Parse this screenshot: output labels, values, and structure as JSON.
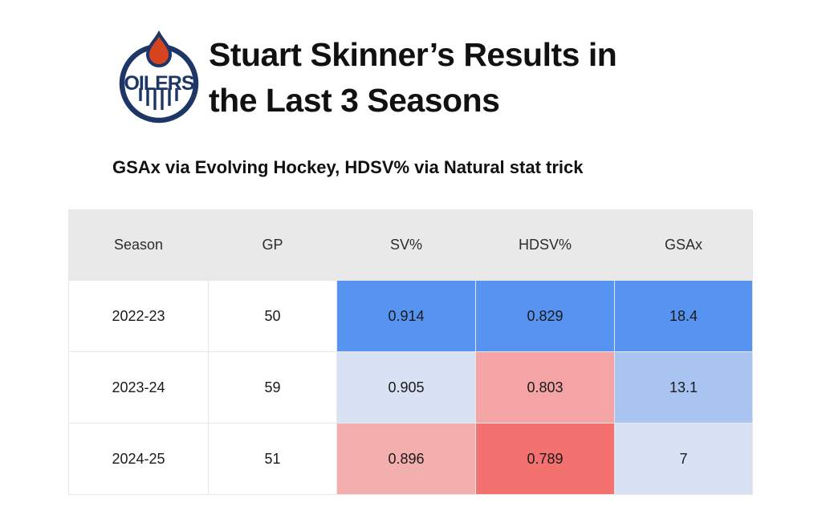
{
  "header": {
    "title_line1": "Stuart Skinner’s Results in",
    "title_line2": "the Last 3 Seasons",
    "logo": {
      "team": "Edmonton Oilers",
      "text": "OILERS",
      "navy": "#1d3666",
      "orange": "#d64420"
    }
  },
  "subtitle": "GSAx via Evolving Hockey, HDSV% via Natural stat trick",
  "palette": {
    "strong_blue": "#5794f2",
    "medium_blue": "#a9c4f1",
    "light_blue": "#d8e2f4",
    "strong_red": "#f3716e",
    "medium_red": "#f4a4a5",
    "light_red": "#f3aeae",
    "header_gray": "#e9e9e9"
  },
  "chart_data": {
    "type": "table",
    "title": "Stuart Skinner’s Results in the Last 3 Seasons",
    "subtitle": "GSAx via Evolving Hockey, HDSV% via Natural stat trick",
    "columns": [
      "Season",
      "GP",
      "SV%",
      "HDSV%",
      "GSAx"
    ],
    "rows": [
      [
        "2022-23",
        "50",
        "0.914",
        "0.829",
        "18.4"
      ],
      [
        "2023-24",
        "59",
        "0.905",
        "0.803",
        "13.1"
      ],
      [
        "2024-25",
        "51",
        "0.896",
        "0.789",
        "7"
      ]
    ],
    "cell_colors": [
      [
        "#ffffff",
        "#ffffff",
        "#5794f2",
        "#5794f2",
        "#5794f2"
      ],
      [
        "#ffffff",
        "#ffffff",
        "#d8e2f4",
        "#f4a4a5",
        "#a9c4f1"
      ],
      [
        "#ffffff",
        "#ffffff",
        "#f3aeae",
        "#f3716e",
        "#d9e2f4"
      ]
    ]
  }
}
